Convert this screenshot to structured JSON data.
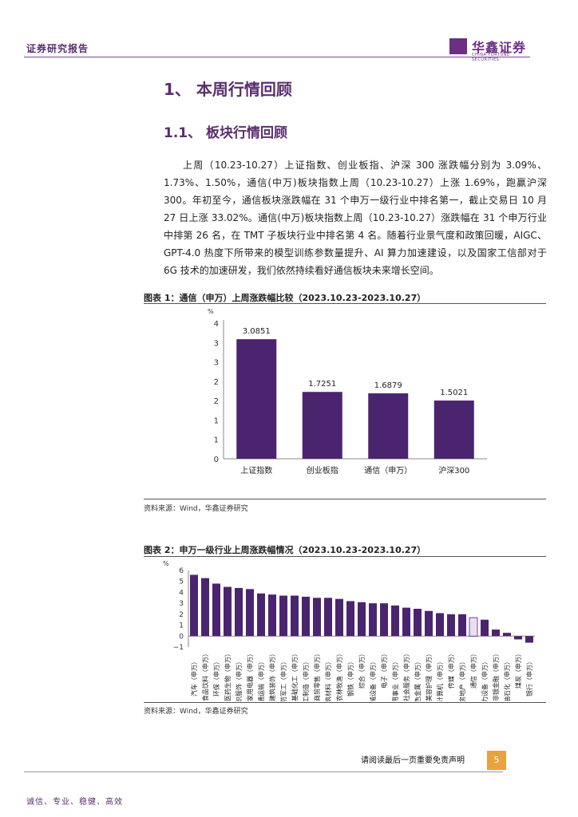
{
  "header": {
    "report_type": "证券研究报告",
    "logo_name": "华鑫证券",
    "logo_sub": "CHINA FORTUNE SECURITIES"
  },
  "section": {
    "h1": "1、 本周行情回顾",
    "h2": "1.1、 板块行情回顾"
  },
  "paragraph": "上周（10.23-10.27）上证指数、创业板指、沪深 300 涨跌幅分别为 3.09%、1.73%、1.50%，通信(中万)板块指数上周（10.23-10.27）上涨 1.69%，跑赢沪深 300。年初至今，通信板块涨跌幅在 31 个申万一级行业中排名第一，截止交易日 10 月 27 日上涨 33.02%。通信(中万)板块指数上周（10.23-10.27）涨跌幅在 31 个申万行业中排第 26 名，在 TMT 子板块行业中排名第 4 名。随着行业景气度和政策回暖，AIGC、GPT-4.0 热度下所带来的模型训练参数量提升、AI 算力加速建设，以及国家工信部对于 6G 技术的加速研发，我们依然持续看好通信板块未来增长空间。",
  "figure1": {
    "title": "图表 1：通信（申万）上周涨跌幅比较（2023.10.23-2023.10.27）",
    "source": "资料来源：Wind，华鑫证券研究"
  },
  "figure2": {
    "title": "图表 2：申万一级行业上周涨跌幅情况（2023.10.23-2023.10.27）",
    "source": "资料来源：Wind，华鑫证券研究"
  },
  "chart_data": [
    {
      "type": "bar",
      "ylabel": "%",
      "categories": [
        "上证指数",
        "创业板指",
        "通信（申万）",
        "沪深300"
      ],
      "values": [
        3.0851,
        1.7251,
        1.6879,
        1.5021
      ],
      "value_labels": [
        "3.0851",
        "1.7251",
        "1.6879",
        "1.5021"
      ],
      "yticks": [
        "0",
        "1",
        "1",
        "2",
        "2",
        "3",
        "3",
        "4"
      ],
      "ylim": [
        0,
        3.5
      ],
      "bar_color": "#4b2470"
    },
    {
      "type": "bar",
      "ylabel": "%",
      "categories": [
        "汽车（申万）",
        "食品饮料（申万）",
        "环保（申万）",
        "医药生物（申万）",
        "纺织服饰（申万）",
        "家用电器（申万）",
        "交通运输（申万）",
        "建筑装饰（申万）",
        "国防军工（申万）",
        "基础化工（申万）",
        "轻工制造（申万）",
        "商贸零售（申万）",
        "建筑材料（申万）",
        "农林牧渔（申万）",
        "钢铁（申万）",
        "综合（申万）",
        "机械设备（申万）",
        "电子（申万）",
        "公用事业（申万）",
        "社会服务（申万）",
        "有色金属（申万）",
        "美容护理（申万）",
        "计算机（申万）",
        "传媒（申万）",
        "房地产（申万）",
        "通信（申万）",
        "电力设备（申万）",
        "非银金融（申万）",
        "石油石化（申万）",
        "煤炭（申万）",
        "银行（申万）"
      ],
      "values": [
        5.6,
        5.3,
        4.8,
        4.5,
        4.4,
        4.3,
        3.9,
        3.8,
        3.7,
        3.7,
        3.6,
        3.5,
        3.5,
        3.4,
        3.2,
        3.1,
        3.0,
        3.0,
        2.8,
        2.6,
        2.5,
        2.3,
        2.1,
        2.0,
        2.0,
        1.69,
        1.5,
        0.6,
        0.3,
        -0.3,
        -0.6
      ],
      "yticks": [
        -1,
        0,
        1,
        2,
        3,
        4,
        5,
        6
      ],
      "ylim": [
        -1,
        6
      ],
      "bar_color": "#4b2470",
      "highlight_category": "通信（申万）",
      "highlight_color": "#e9dff0"
    }
  ],
  "footer": {
    "disclaimer": "请阅读最后一页重要免责声明",
    "page": "5",
    "motto": "诚信、专业、稳健、高效"
  }
}
